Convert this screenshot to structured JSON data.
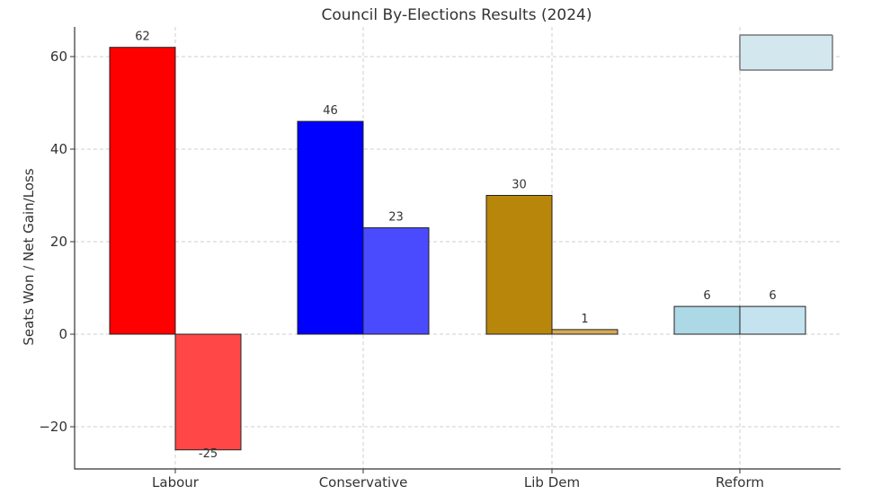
{
  "chart_data": {
    "type": "bar",
    "title": "Council By-Elections Results (2024)",
    "xlabel": "",
    "ylabel": "Seats Won / Net Gain/Loss",
    "categories": [
      "Labour",
      "Conservative",
      "Lib Dem",
      "Reform"
    ],
    "series": [
      {
        "values": [
          62,
          46,
          30,
          6
        ],
        "colors": [
          "#ff0000",
          "#0000ff",
          "#b8860b",
          "#add8e6"
        ]
      },
      {
        "values": [
          -25,
          23,
          1,
          6
        ],
        "colors": [
          "#ff4747",
          "#4a4aff",
          "#d4aa55",
          "#c4e3ee"
        ]
      }
    ],
    "ylim": [
      -29,
      66
    ],
    "yticks": [
      -20,
      0,
      20,
      40,
      60
    ],
    "ytick_labels": [
      "−20",
      "0",
      "20",
      "40",
      "60"
    ],
    "data_labels": [
      [
        "62",
        "46",
        "30",
        "6"
      ],
      [
        "-25",
        "23",
        "1",
        "6"
      ]
    ],
    "grid": true,
    "legend": {
      "placement": "top-right",
      "entries": []
    }
  }
}
